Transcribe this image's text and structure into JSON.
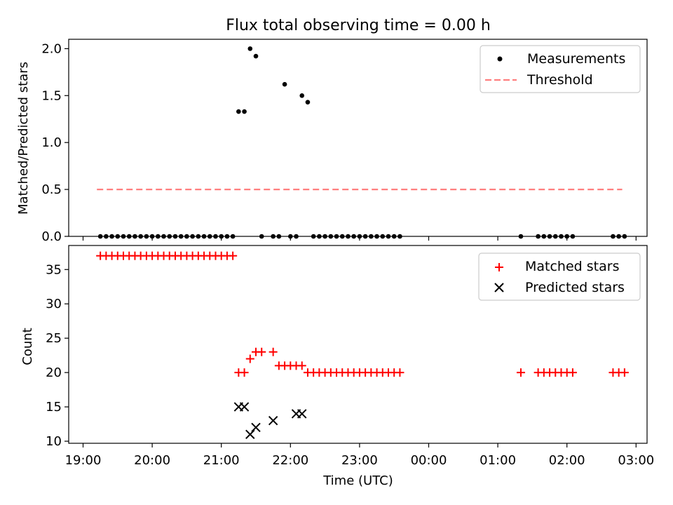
{
  "figure": {
    "title": "Flux total observing time = 0.00 h"
  },
  "chart_data": [
    {
      "type": "scatter",
      "ylabel": "Matched/Predicted stars",
      "xlabel": "",
      "xlim": [
        "19:00",
        "03:00"
      ],
      "ylim": [
        0,
        2.1
      ],
      "yticks": [
        0.0,
        0.5,
        1.0,
        1.5,
        2.0
      ],
      "ytick_labels": [
        "0.0",
        "0.5",
        "1.0",
        "1.5",
        "2.0"
      ],
      "legend_position": "top-right",
      "series": [
        {
          "name": "Measurements",
          "kind": "scatter",
          "marker": "dot",
          "color": "#000000",
          "x": [
            "19:15",
            "19:20",
            "19:25",
            "19:30",
            "19:35",
            "19:40",
            "19:45",
            "19:50",
            "19:55",
            "20:00",
            "20:05",
            "20:10",
            "20:15",
            "20:20",
            "20:25",
            "20:30",
            "20:35",
            "20:40",
            "20:45",
            "20:50",
            "20:55",
            "21:00",
            "21:05",
            "21:10",
            "21:15",
            "21:20",
            "21:25",
            "21:30",
            "21:35",
            "21:45",
            "21:50",
            "21:55",
            "22:00",
            "22:05",
            "22:10",
            "22:15",
            "22:20",
            "22:25",
            "22:30",
            "22:35",
            "22:40",
            "22:45",
            "22:50",
            "22:55",
            "23:00",
            "23:05",
            "23:10",
            "23:15",
            "23:20",
            "23:25",
            "23:30",
            "23:35",
            "01:20",
            "01:35",
            "01:40",
            "01:45",
            "01:50",
            "01:55",
            "02:00",
            "02:05",
            "02:40",
            "02:45",
            "02:50"
          ],
          "y": [
            0,
            0,
            0,
            0,
            0,
            0,
            0,
            0,
            0,
            0,
            0,
            0,
            0,
            0,
            0,
            0,
            0,
            0,
            0,
            0,
            0,
            0,
            0,
            0,
            1.33,
            1.33,
            2.0,
            1.92,
            0,
            0,
            0,
            1.62,
            0,
            0,
            1.5,
            1.43,
            0,
            0,
            0,
            0,
            0,
            0,
            0,
            0,
            0,
            0,
            0,
            0,
            0,
            0,
            0,
            0,
            0,
            0,
            0,
            0,
            0,
            0,
            0,
            0,
            0,
            0,
            0
          ]
        },
        {
          "name": "Threshold",
          "kind": "line",
          "style": "dashed",
          "color": "#ff7f7f",
          "x": [
            "19:12",
            "02:48"
          ],
          "y": [
            0.5,
            0.5
          ]
        }
      ]
    },
    {
      "type": "scatter",
      "ylabel": "Count",
      "xlabel": "Time (UTC)",
      "xlim": [
        "19:00",
        "03:00"
      ],
      "ylim": [
        9.7,
        38.5
      ],
      "yticks": [
        10,
        15,
        20,
        25,
        30,
        35
      ],
      "ytick_labels": [
        "10",
        "15",
        "20",
        "25",
        "30",
        "35"
      ],
      "xticks": [
        "19:00",
        "20:00",
        "21:00",
        "22:00",
        "23:00",
        "00:00",
        "01:00",
        "02:00",
        "03:00"
      ],
      "xtick_labels": [
        "19:00",
        "20:00",
        "21:00",
        "22:00",
        "23:00",
        "00:00",
        "01:00",
        "02:00",
        "03:00"
      ],
      "legend_position": "top-right",
      "series": [
        {
          "name": "Matched stars",
          "kind": "scatter",
          "marker": "plus",
          "color": "#ff0000",
          "x": [
            "19:15",
            "19:20",
            "19:25",
            "19:30",
            "19:35",
            "19:40",
            "19:45",
            "19:50",
            "19:55",
            "20:00",
            "20:05",
            "20:10",
            "20:15",
            "20:20",
            "20:25",
            "20:30",
            "20:35",
            "20:40",
            "20:45",
            "20:50",
            "20:55",
            "21:00",
            "21:05",
            "21:10",
            "21:15",
            "21:20",
            "21:25",
            "21:30",
            "21:35",
            "21:45",
            "21:50",
            "21:55",
            "22:00",
            "22:05",
            "22:10",
            "22:15",
            "22:20",
            "22:25",
            "22:30",
            "22:35",
            "22:40",
            "22:45",
            "22:50",
            "22:55",
            "23:00",
            "23:05",
            "23:10",
            "23:15",
            "23:20",
            "23:25",
            "23:30",
            "23:35",
            "01:20",
            "01:35",
            "01:40",
            "01:45",
            "01:50",
            "01:55",
            "02:00",
            "02:05",
            "02:40",
            "02:45",
            "02:50"
          ],
          "y": [
            37,
            37,
            37,
            37,
            37,
            37,
            37,
            37,
            37,
            37,
            37,
            37,
            37,
            37,
            37,
            37,
            37,
            37,
            37,
            37,
            37,
            37,
            37,
            37,
            20,
            20,
            22,
            23,
            23,
            23,
            21,
            21,
            21,
            21,
            21,
            20,
            20,
            20,
            20,
            20,
            20,
            20,
            20,
            20,
            20,
            20,
            20,
            20,
            20,
            20,
            20,
            20,
            20,
            20,
            20,
            20,
            20,
            20,
            20,
            20,
            20,
            20,
            20
          ]
        },
        {
          "name": "Predicted stars",
          "kind": "scatter",
          "marker": "x",
          "color": "#000000",
          "x": [
            "21:15",
            "21:20",
            "21:25",
            "21:30",
            "21:45",
            "22:05",
            "22:10"
          ],
          "y": [
            15,
            15,
            11,
            12,
            13,
            14,
            14
          ]
        }
      ]
    }
  ]
}
